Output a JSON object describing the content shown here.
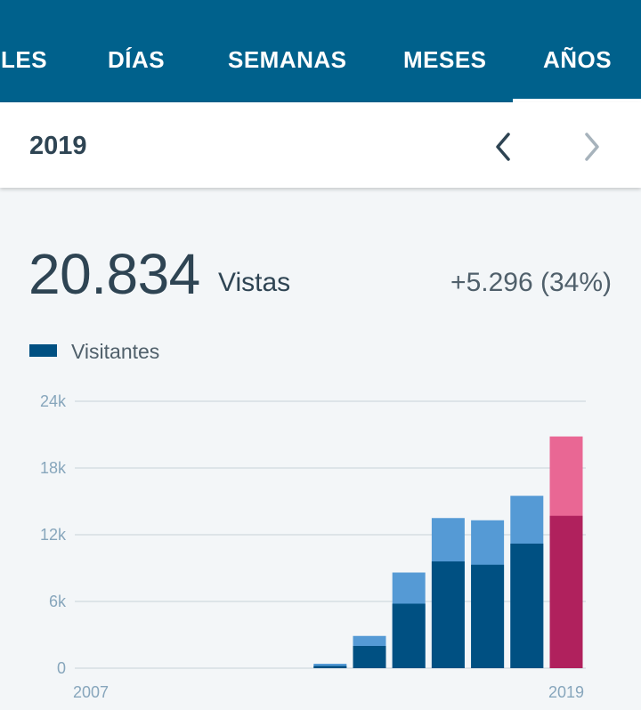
{
  "tabs": {
    "items": [
      {
        "label": "LES"
      },
      {
        "label": "DÍAS"
      },
      {
        "label": "SEMANAS"
      },
      {
        "label": "MESES"
      },
      {
        "label": "AÑOS",
        "selected": true
      }
    ]
  },
  "date_nav": {
    "period": "2019",
    "prev_icon": "chevron-left-icon",
    "next_icon": "chevron-right-icon"
  },
  "summary": {
    "views_count": "20.834",
    "views_label": "Vistas",
    "change": "+5.296 (34%)"
  },
  "legend": {
    "label": "Visitantes"
  },
  "colors": {
    "primary": "#00618c",
    "visitors": "#005082",
    "views": "#559ad5",
    "selected_visitors": "#b0215d",
    "selected_views": "#e96794",
    "grid": "#d6dde2"
  },
  "chart_data": {
    "type": "bar",
    "title": "",
    "xlabel": "",
    "ylabel": "",
    "ylim": [
      0,
      24000
    ],
    "y_ticks": [
      "0",
      "6k",
      "12k",
      "18k",
      "24k"
    ],
    "y_tick_values": [
      0,
      6000,
      12000,
      18000,
      24000
    ],
    "categories": [
      "2007",
      "2008",
      "2009",
      "2010",
      "2011",
      "2012",
      "2013",
      "2014",
      "2015",
      "2016",
      "2017",
      "2018",
      "2019"
    ],
    "x_tick_labels": [
      {
        "category": "2007",
        "label": "2007"
      },
      {
        "category": "2019",
        "label": "2019"
      }
    ],
    "selected_category": "2019",
    "series": [
      {
        "name": "Vistas",
        "values": [
          0,
          0,
          0,
          0,
          0,
          0,
          400,
          2900,
          8600,
          13500,
          13300,
          15500,
          20834
        ]
      },
      {
        "name": "Visitantes",
        "values": [
          0,
          0,
          0,
          0,
          0,
          0,
          200,
          2000,
          5800,
          9600,
          9300,
          11200,
          13700
        ]
      }
    ]
  }
}
